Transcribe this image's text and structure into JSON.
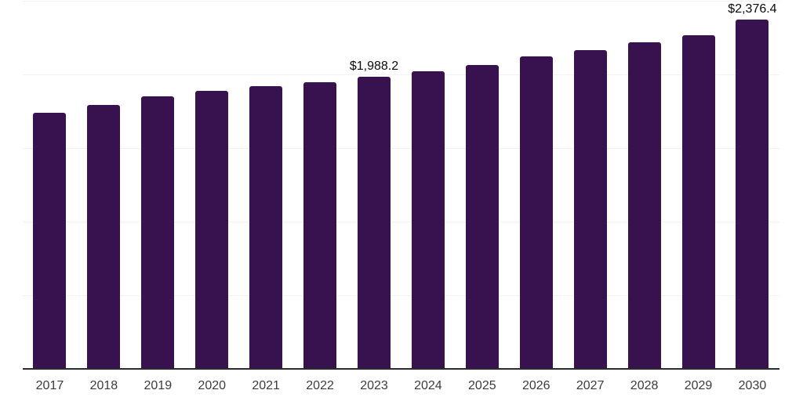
{
  "chart_data": {
    "type": "bar",
    "title": "",
    "xlabel": "",
    "ylabel": "",
    "categories": [
      "2017",
      "2018",
      "2019",
      "2020",
      "2021",
      "2022",
      "2023",
      "2024",
      "2025",
      "2026",
      "2027",
      "2028",
      "2029",
      "2030"
    ],
    "values": [
      1745,
      1798,
      1856,
      1892,
      1926,
      1954,
      1988.2,
      2028,
      2071,
      2126,
      2172,
      2221,
      2271,
      2376.4
    ],
    "point_labels": [
      "",
      "",
      "",
      "",
      "",
      "",
      "$1,988.2",
      "",
      "",
      "",
      "",
      "",
      "",
      "$2,376.4"
    ],
    "ylim": [
      0,
      2500
    ],
    "gridline_step": 500,
    "grid": "horizontal-only",
    "y_axis_tick_labels_visible": false,
    "legend": "none",
    "colors": {
      "bar": "#37124e",
      "value_label": "#0a0a0a",
      "axis_line": "#2b2b2b",
      "gridline": "#f3f3f3",
      "tick_label": "#3c3c3c",
      "background": "#ffffff"
    }
  }
}
